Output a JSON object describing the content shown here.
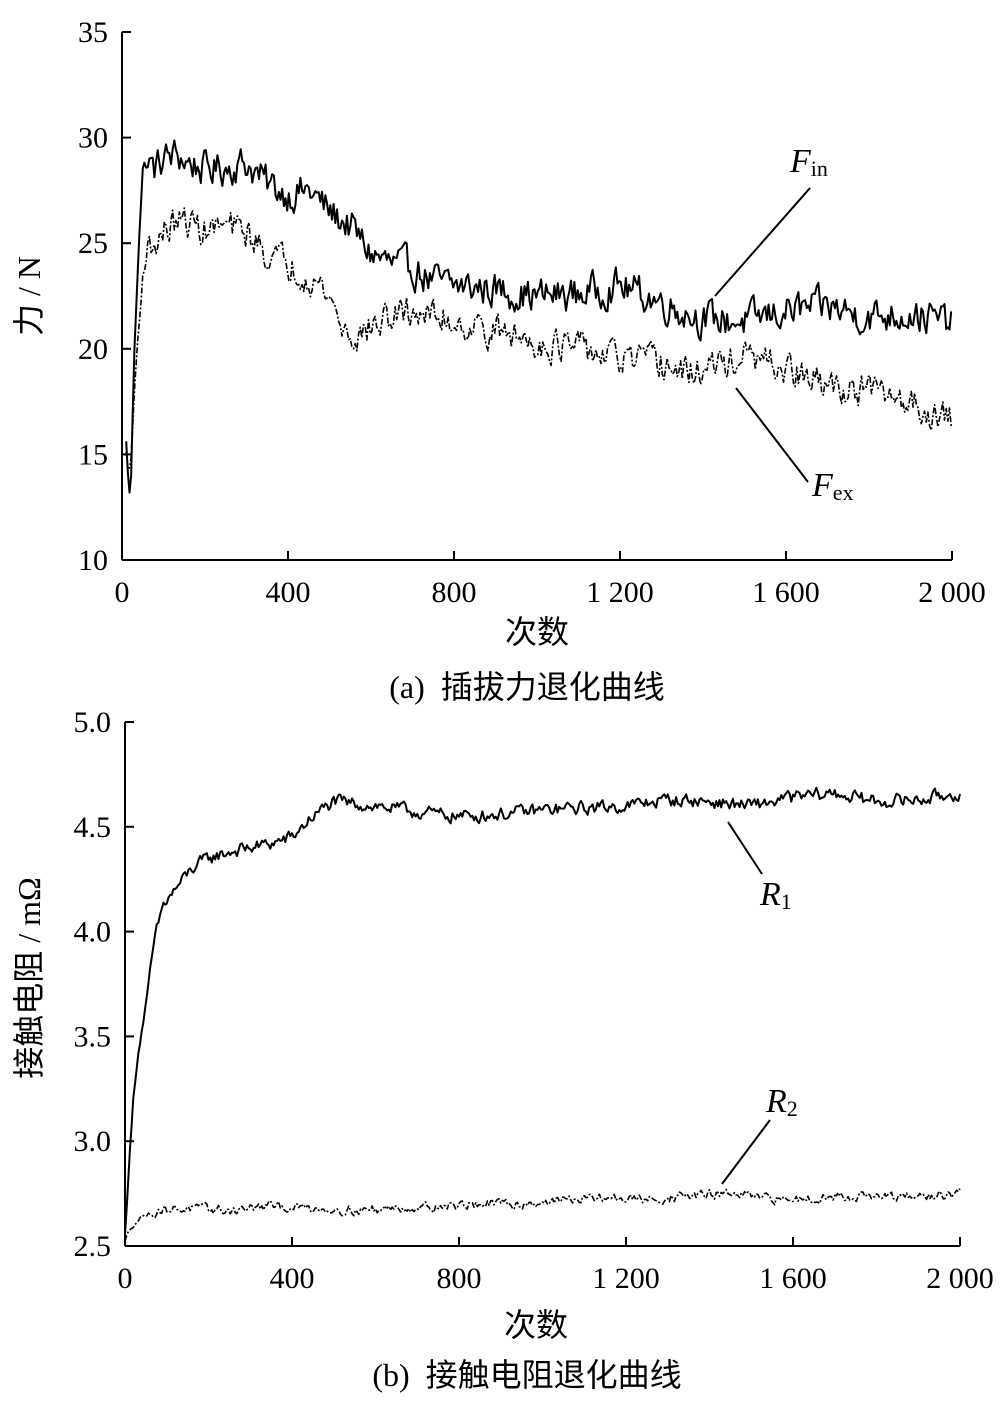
{
  "chart_data": [
    {
      "type": "line",
      "caption": "(a)  插拔力退化曲线",
      "xlabel": "次数",
      "ylabel": "力 / N",
      "xlim": [
        0,
        2000
      ],
      "ylim": [
        10,
        35
      ],
      "xticks": [
        0,
        400,
        800,
        1200,
        1600,
        2000
      ],
      "xtick_labels": [
        "0",
        "400",
        "800",
        "1 200",
        "1 600",
        "2 000"
      ],
      "yticks": [
        10,
        15,
        20,
        25,
        30,
        35
      ],
      "ytick_labels": [
        "10",
        "15",
        "20",
        "25",
        "30",
        "35"
      ],
      "grid": false,
      "legend": "none",
      "series": [
        {
          "label_main": "F",
          "label_sub": "in",
          "style": "solid",
          "x": [
            10,
            20,
            30,
            40,
            50,
            60,
            80,
            100,
            130,
            160,
            200,
            250,
            300,
            350,
            400,
            450,
            500,
            550,
            600,
            650,
            700,
            750,
            800,
            900,
            1000,
            1100,
            1200,
            1250,
            1300,
            1400,
            1500,
            1600,
            1700,
            1800,
            1900,
            2000
          ],
          "y": [
            15.5,
            12.5,
            20,
            25,
            28.5,
            28.8,
            28.5,
            29,
            29.2,
            28.8,
            28.5,
            28.6,
            28.8,
            27.8,
            27.3,
            27.5,
            26.5,
            25.8,
            24.5,
            24,
            23.8,
            23.2,
            23,
            22.8,
            22.5,
            22.6,
            23,
            22.6,
            22.2,
            21.4,
            21.3,
            21.8,
            22,
            21.5,
            21.7,
            21.2
          ],
          "amplitude": 1.3
        },
        {
          "label_main": "F",
          "label_sub": "ex",
          "style": "dashdot",
          "x": [
            10,
            20,
            30,
            40,
            50,
            60,
            80,
            100,
            130,
            160,
            200,
            250,
            300,
            350,
            400,
            450,
            500,
            530,
            560,
            600,
            650,
            700,
            800,
            900,
            1000,
            1100,
            1200,
            1300,
            1350,
            1400,
            1500,
            1600,
            1700,
            1800,
            1900,
            2000
          ],
          "y": [
            15,
            14,
            18,
            21,
            23.5,
            24.5,
            25,
            25.5,
            26,
            26,
            25.6,
            25.8,
            25.5,
            24.5,
            24,
            23.5,
            22.5,
            21,
            20.5,
            21,
            21.5,
            21.8,
            21.3,
            20.8,
            20.3,
            20,
            19.5,
            19.3,
            18.8,
            19,
            19.6,
            19,
            18.2,
            18,
            17.5,
            16.5
          ],
          "amplitude": 1.2
        }
      ]
    },
    {
      "type": "line",
      "caption": "(b)  接触电阻退化曲线",
      "xlabel": "次数",
      "ylabel": "接触电阻 / mΩ",
      "xlim": [
        0,
        2000
      ],
      "ylim": [
        2.5,
        5.0
      ],
      "xticks": [
        0,
        400,
        800,
        1200,
        1600,
        2000
      ],
      "xtick_labels": [
        "0",
        "400",
        "800",
        "1 200",
        "1 600",
        "2 000"
      ],
      "yticks": [
        2.5,
        3.0,
        3.5,
        4.0,
        4.5,
        5.0
      ],
      "ytick_labels": [
        "2.5",
        "3.0",
        "3.5",
        "4.0",
        "4.5",
        "5.0"
      ],
      "grid": false,
      "legend": "none",
      "series": [
        {
          "label_main": "R",
          "label_sub": "1",
          "style": "solid",
          "x": [
            0,
            10,
            20,
            30,
            50,
            70,
            90,
            120,
            160,
            200,
            250,
            300,
            350,
            400,
            450,
            500,
            600,
            700,
            800,
            900,
            1000,
            1100,
            1200,
            1300,
            1400,
            1500,
            1600,
            1700,
            1800,
            1900,
            2000
          ],
          "y": [
            2.55,
            2.9,
            3.2,
            3.4,
            3.65,
            3.95,
            4.12,
            4.2,
            4.3,
            4.35,
            4.38,
            4.4,
            4.42,
            4.45,
            4.55,
            4.62,
            4.6,
            4.57,
            4.55,
            4.56,
            4.58,
            4.59,
            4.6,
            4.63,
            4.62,
            4.6,
            4.64,
            4.66,
            4.62,
            4.63,
            4.66
          ],
          "amplitude": 0.05
        },
        {
          "label_main": "R",
          "label_sub": "2",
          "style": "dashdot",
          "x": [
            0,
            10,
            20,
            40,
            80,
            150,
            250,
            350,
            450,
            550,
            650,
            750,
            850,
            950,
            1050,
            1150,
            1250,
            1350,
            1450,
            1550,
            1650,
            1750,
            1850,
            1950,
            2000
          ],
          "y": [
            2.52,
            2.58,
            2.6,
            2.64,
            2.67,
            2.68,
            2.67,
            2.69,
            2.68,
            2.67,
            2.68,
            2.69,
            2.7,
            2.7,
            2.72,
            2.73,
            2.72,
            2.74,
            2.75,
            2.72,
            2.73,
            2.74,
            2.73,
            2.74,
            2.75
          ],
          "amplitude": 0.035
        }
      ]
    }
  ]
}
